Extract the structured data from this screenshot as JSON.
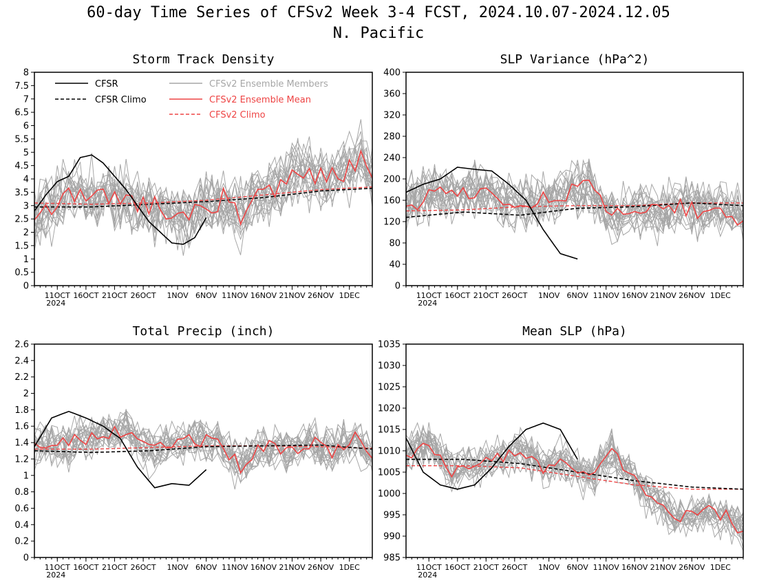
{
  "figure": {
    "title_line1": "60-day Time Series of CFSv2 Week 3-4 FCST, 2024.10.07-2024.12.05",
    "title_line2": "N. Pacific"
  },
  "legend": {
    "cfsr": "CFSR",
    "cfsr_climo": "CFSR Climo",
    "members": "CFSv2 Ensemble Members",
    "mean": "CFSv2 Ensemble Mean",
    "climo": "CFSv2 Climo"
  },
  "colors": {
    "cfsr": "#000000",
    "cfsr_climo": "#000000",
    "members": "#a6a6a6",
    "mean": "#ee4444",
    "climo": "#ee4444"
  },
  "x_ticks": [
    "11OCT",
    "16OCT",
    "21OCT",
    "26OCT",
    "1NOV",
    "6NOV",
    "11NOV",
    "16NOV",
    "21NOV",
    "26NOV",
    "1DEC"
  ],
  "x_tick_year": "2024",
  "chart_data": [
    {
      "type": "line",
      "title": "Storm Track Density",
      "x_range": [
        "2024-10-07",
        "2024-12-05"
      ],
      "ylim": [
        0,
        8
      ],
      "y_ticks": [
        "0",
        "0.5",
        "1",
        "1.5",
        "2",
        "2.5",
        "3",
        "3.5",
        "4",
        "4.5",
        "5",
        "5.5",
        "6",
        "6.5",
        "7",
        "7.5",
        "8"
      ],
      "legend_position": "top-left",
      "ensemble_members": {
        "count": 20,
        "spread": 0.9
      },
      "series": [
        {
          "name": "CFSR",
          "style": "solid",
          "x": [
            "2024-10-07",
            "2024-10-09",
            "2024-10-11",
            "2024-10-13",
            "2024-10-15",
            "2024-10-17",
            "2024-10-19",
            "2024-10-21",
            "2024-10-23",
            "2024-10-25",
            "2024-10-27",
            "2024-10-29",
            "2024-10-31",
            "2024-11-02",
            "2024-11-04",
            "2024-11-06"
          ],
          "values": [
            2.8,
            3.4,
            3.9,
            4.1,
            4.8,
            4.9,
            4.6,
            4.1,
            3.6,
            3.0,
            2.4,
            2.0,
            1.6,
            1.55,
            1.8,
            2.55
          ]
        },
        {
          "name": "CFSR Climo",
          "style": "dashed",
          "x": [
            "2024-10-07",
            "2024-10-17",
            "2024-10-27",
            "2024-11-06",
            "2024-11-16",
            "2024-11-26",
            "2024-12-05"
          ],
          "values": [
            2.95,
            2.95,
            3.05,
            3.15,
            3.3,
            3.55,
            3.65
          ]
        },
        {
          "name": "CFSv2 Ensemble Mean",
          "style": "solid",
          "x": [
            "2024-10-07",
            "2024-10-10",
            "2024-10-13",
            "2024-10-16",
            "2024-10-19",
            "2024-10-22",
            "2024-10-25",
            "2024-10-28",
            "2024-10-31",
            "2024-11-03",
            "2024-11-06",
            "2024-11-09",
            "2024-11-12",
            "2024-11-15",
            "2024-11-18",
            "2024-11-21",
            "2024-11-24",
            "2024-11-27",
            "2024-11-30",
            "2024-12-03",
            "2024-12-05"
          ],
          "values": [
            2.5,
            2.9,
            3.6,
            3.2,
            3.4,
            3.3,
            3.1,
            3.0,
            2.8,
            2.6,
            2.9,
            3.3,
            2.7,
            3.3,
            3.6,
            4.2,
            4.3,
            4.0,
            4.3,
            4.8,
            4.0
          ]
        },
        {
          "name": "CFSv2 Climo",
          "style": "dashed",
          "x": [
            "2024-10-07",
            "2024-10-17",
            "2024-10-27",
            "2024-11-06",
            "2024-11-16",
            "2024-11-26",
            "2024-12-05"
          ],
          "values": [
            3.1,
            3.05,
            3.1,
            3.2,
            3.4,
            3.6,
            3.7
          ]
        }
      ]
    },
    {
      "type": "line",
      "title": "SLP Variance (hPa^2)",
      "x_range": [
        "2024-10-07",
        "2024-12-05"
      ],
      "ylim": [
        0,
        400
      ],
      "y_ticks": [
        "0",
        "40",
        "80",
        "120",
        "160",
        "200",
        "240",
        "280",
        "320",
        "360",
        "400"
      ],
      "ensemble_members": {
        "count": 20,
        "spread": 38
      },
      "series": [
        {
          "name": "CFSR",
          "style": "solid",
          "x": [
            "2024-10-07",
            "2024-10-10",
            "2024-10-13",
            "2024-10-16",
            "2024-10-19",
            "2024-10-22",
            "2024-10-25",
            "2024-10-28",
            "2024-10-31",
            "2024-11-03",
            "2024-11-06"
          ],
          "values": [
            175,
            190,
            200,
            222,
            218,
            215,
            190,
            160,
            105,
            60,
            50
          ]
        },
        {
          "name": "CFSR Climo",
          "style": "dashed",
          "x": [
            "2024-10-07",
            "2024-10-17",
            "2024-10-27",
            "2024-11-06",
            "2024-11-16",
            "2024-11-26",
            "2024-12-05"
          ],
          "values": [
            128,
            138,
            132,
            145,
            148,
            155,
            150
          ]
        },
        {
          "name": "CFSv2 Ensemble Mean",
          "style": "solid",
          "x": [
            "2024-10-07",
            "2024-10-11",
            "2024-10-15",
            "2024-10-19",
            "2024-10-23",
            "2024-10-27",
            "2024-10-31",
            "2024-11-04",
            "2024-11-08",
            "2024-11-12",
            "2024-11-16",
            "2024-11-20",
            "2024-11-24",
            "2024-11-28",
            "2024-12-02",
            "2024-12-05"
          ],
          "values": [
            150,
            165,
            175,
            180,
            165,
            150,
            165,
            175,
            185,
            130,
            140,
            135,
            150,
            140,
            145,
            120
          ]
        },
        {
          "name": "CFSv2 Climo",
          "style": "dashed",
          "x": [
            "2024-10-07",
            "2024-10-17",
            "2024-10-27",
            "2024-11-06",
            "2024-11-16",
            "2024-11-26",
            "2024-12-05"
          ],
          "values": [
            140,
            142,
            148,
            150,
            150,
            155,
            155
          ]
        }
      ]
    },
    {
      "type": "line",
      "title": "Total Precip (inch)",
      "x_range": [
        "2024-10-07",
        "2024-12-05"
      ],
      "ylim": [
        0,
        2.6
      ],
      "y_ticks": [
        "0",
        "0.2",
        "0.4",
        "0.6",
        "0.8",
        "1",
        "1.2",
        "1.4",
        "1.6",
        "1.8",
        "2",
        "2.2",
        "2.4",
        "2.6"
      ],
      "ensemble_members": {
        "count": 20,
        "spread": 0.2
      },
      "series": [
        {
          "name": "CFSR",
          "style": "solid",
          "x": [
            "2024-10-07",
            "2024-10-10",
            "2024-10-13",
            "2024-10-16",
            "2024-10-19",
            "2024-10-22",
            "2024-10-25",
            "2024-10-28",
            "2024-10-31",
            "2024-11-03",
            "2024-11-06"
          ],
          "values": [
            1.35,
            1.7,
            1.78,
            1.7,
            1.6,
            1.45,
            1.1,
            0.85,
            0.9,
            0.88,
            1.07
          ]
        },
        {
          "name": "CFSR Climo",
          "style": "dashed",
          "x": [
            "2024-10-07",
            "2024-10-17",
            "2024-10-27",
            "2024-11-06",
            "2024-11-16",
            "2024-11-26",
            "2024-12-05"
          ],
          "values": [
            1.3,
            1.28,
            1.3,
            1.35,
            1.36,
            1.37,
            1.32
          ]
        },
        {
          "name": "CFSv2 Ensemble Mean",
          "style": "solid",
          "x": [
            "2024-10-07",
            "2024-10-11",
            "2024-10-15",
            "2024-10-19",
            "2024-10-23",
            "2024-10-27",
            "2024-10-31",
            "2024-11-04",
            "2024-11-08",
            "2024-11-12",
            "2024-11-16",
            "2024-11-20",
            "2024-11-24",
            "2024-11-28",
            "2024-12-02",
            "2024-12-05"
          ],
          "values": [
            1.4,
            1.35,
            1.45,
            1.5,
            1.55,
            1.3,
            1.35,
            1.45,
            1.4,
            1.1,
            1.35,
            1.3,
            1.4,
            1.3,
            1.45,
            1.2
          ]
        },
        {
          "name": "CFSv2 Climo",
          "style": "dashed",
          "x": [
            "2024-10-07",
            "2024-10-17",
            "2024-10-27",
            "2024-11-06",
            "2024-11-16",
            "2024-11-26",
            "2024-12-05"
          ],
          "values": [
            1.32,
            1.32,
            1.34,
            1.36,
            1.36,
            1.35,
            1.33
          ]
        }
      ]
    },
    {
      "type": "line",
      "title": "Mean SLP (hPa)",
      "x_range": [
        "2024-10-07",
        "2024-12-05"
      ],
      "ylim": [
        985,
        1035
      ],
      "y_ticks": [
        "985",
        "990",
        "995",
        "1000",
        "1005",
        "1010",
        "1015",
        "1020",
        "1025",
        "1030",
        "1035"
      ],
      "ensemble_members": {
        "count": 20,
        "spread": 3.5
      },
      "series": [
        {
          "name": "CFSR",
          "style": "solid",
          "x": [
            "2024-10-07",
            "2024-10-10",
            "2024-10-13",
            "2024-10-16",
            "2024-10-19",
            "2024-10-22",
            "2024-10-25",
            "2024-10-28",
            "2024-10-31",
            "2024-11-03",
            "2024-11-06"
          ],
          "values": [
            1013,
            1005,
            1002,
            1001,
            1002,
            1006,
            1011,
            1015,
            1016.5,
            1015,
            1008
          ]
        },
        {
          "name": "CFSR Climo",
          "style": "dashed",
          "x": [
            "2024-10-07",
            "2024-10-17",
            "2024-10-27",
            "2024-11-06",
            "2024-11-16",
            "2024-11-26",
            "2024-12-05"
          ],
          "values": [
            1008,
            1008,
            1007,
            1005,
            1003,
            1001.5,
            1001
          ]
        },
        {
          "name": "CFSv2 Ensemble Mean",
          "style": "solid",
          "x": [
            "2024-10-07",
            "2024-10-11",
            "2024-10-15",
            "2024-10-19",
            "2024-10-23",
            "2024-10-27",
            "2024-10-31",
            "2024-11-04",
            "2024-11-08",
            "2024-11-12",
            "2024-11-16",
            "2024-11-20",
            "2024-11-24",
            "2024-11-28",
            "2024-12-02",
            "2024-12-05"
          ],
          "values": [
            1009,
            1012,
            1005,
            1006,
            1008,
            1010,
            1006,
            1008,
            1004,
            1010,
            1003,
            998,
            994,
            996,
            995,
            991
          ]
        },
        {
          "name": "CFSv2 Climo",
          "style": "dashed",
          "x": [
            "2024-10-07",
            "2024-10-17",
            "2024-10-27",
            "2024-11-06",
            "2024-11-16",
            "2024-11-26",
            "2024-12-05"
          ],
          "values": [
            1006.5,
            1006.5,
            1006,
            1004,
            1002,
            1001,
            1001
          ]
        }
      ]
    }
  ]
}
